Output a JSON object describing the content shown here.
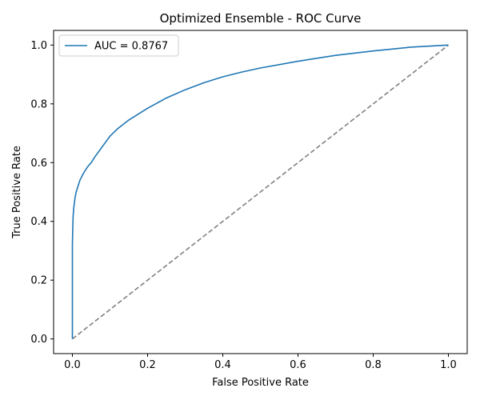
{
  "chart_data": {
    "type": "line",
    "title": "Optimized Ensemble - ROC Curve",
    "xlabel": "False Positive Rate",
    "ylabel": "True Positive Rate",
    "xlim": [
      -0.05,
      1.05
    ],
    "ylim": [
      -0.05,
      1.05
    ],
    "xticks": [
      "0.0",
      "0.2",
      "0.4",
      "0.6",
      "0.8",
      "1.0"
    ],
    "yticks": [
      "0.0",
      "0.2",
      "0.4",
      "0.6",
      "0.8",
      "1.0"
    ],
    "grid": false,
    "legend_position": "top-left",
    "series": [
      {
        "name": "AUC = 0.8767",
        "color": "#1f77b4",
        "style": "solid",
        "x": [
          0.0,
          0.0,
          0.001,
          0.002,
          0.004,
          0.007,
          0.01,
          0.015,
          0.02,
          0.03,
          0.04,
          0.05,
          0.06,
          0.08,
          0.1,
          0.12,
          0.15,
          0.2,
          0.25,
          0.3,
          0.35,
          0.4,
          0.45,
          0.5,
          0.6,
          0.7,
          0.8,
          0.9,
          1.0
        ],
        "y": [
          0.0,
          0.32,
          0.38,
          0.42,
          0.45,
          0.48,
          0.5,
          0.52,
          0.54,
          0.565,
          0.585,
          0.6,
          0.62,
          0.655,
          0.69,
          0.715,
          0.745,
          0.785,
          0.82,
          0.848,
          0.872,
          0.892,
          0.908,
          0.922,
          0.945,
          0.965,
          0.98,
          0.993,
          1.0
        ]
      },
      {
        "name": "",
        "color": "#808080",
        "style": "dashed",
        "x": [
          0.0,
          1.0
        ],
        "y": [
          0.0,
          1.0
        ]
      }
    ]
  }
}
